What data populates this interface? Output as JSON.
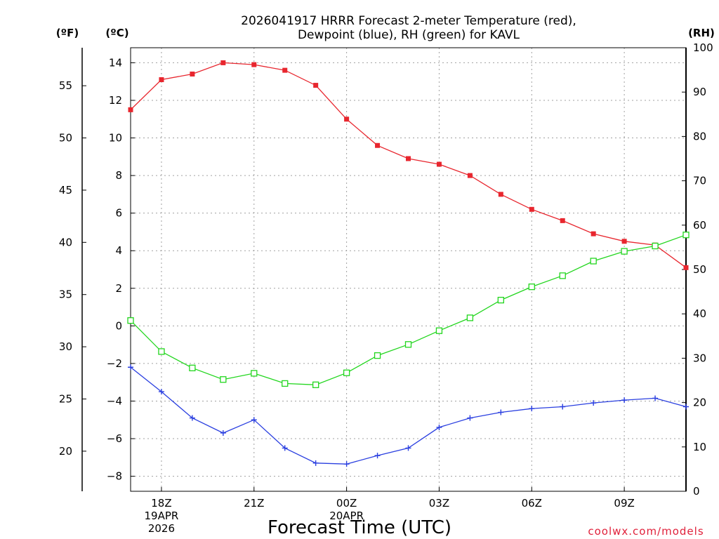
{
  "chart_data": {
    "type": "line",
    "title": [
      "2026041917 HRRR Forecast 2-meter Temperature (red),",
      "Dewpoint (blue), RH (green) for KAVL"
    ],
    "xlabel": "Forecast Time (UTC)",
    "credit": "coolwx.com/models",
    "unit_labels": {
      "fahrenheit": "(ºF)",
      "celsius": "(ºC)",
      "rh": "(RH)"
    },
    "x": [
      17,
      18,
      19,
      20,
      21,
      22,
      23,
      24,
      25,
      26,
      27,
      28,
      29,
      30,
      31,
      32,
      33,
      34,
      35
    ],
    "x_ticks": [
      {
        "x": 18,
        "lines": [
          "18Z",
          "19APR",
          "2026"
        ]
      },
      {
        "x": 21,
        "lines": [
          "21Z"
        ]
      },
      {
        "x": 24,
        "lines": [
          "00Z",
          "20APR"
        ]
      },
      {
        "x": 27,
        "lines": [
          "03Z"
        ]
      },
      {
        "x": 30,
        "lines": [
          "06Z"
        ]
      },
      {
        "x": 33,
        "lines": [
          "09Z"
        ]
      }
    ],
    "xlim": [
      17,
      35
    ],
    "ylim_c": [
      -8.8,
      14.8
    ],
    "ylim_rh": [
      0,
      100
    ],
    "y_ticks_c": [
      -8,
      -6,
      -4,
      -2,
      0,
      2,
      4,
      6,
      8,
      10,
      12,
      14
    ],
    "y_ticks_f": [
      20,
      25,
      30,
      35,
      40,
      45,
      50,
      55
    ],
    "y_ticks_rh": [
      0,
      10,
      20,
      30,
      40,
      50,
      60,
      70,
      80,
      90,
      100
    ],
    "grid": true,
    "series": [
      {
        "name": "Temperature",
        "axis": "celsius",
        "color": "#e8262e",
        "marker": "filled-square",
        "values": [
          11.5,
          13.1,
          13.4,
          14.0,
          13.9,
          13.6,
          12.8,
          11.0,
          9.6,
          8.9,
          8.6,
          8.0,
          7.0,
          6.2,
          5.6,
          4.9,
          4.5,
          4.3,
          3.1
        ]
      },
      {
        "name": "Dewpoint",
        "axis": "celsius",
        "color": "#2a3fe0",
        "marker": "plus",
        "values": [
          -2.2,
          -3.5,
          -4.9,
          -5.7,
          -5.0,
          -6.5,
          -7.3,
          -7.35,
          -6.9,
          -6.5,
          -5.4,
          -4.9,
          -4.6,
          -4.4,
          -4.3,
          -4.1,
          -3.95,
          -3.85,
          -4.3
        ]
      },
      {
        "name": "RH",
        "axis": "rh",
        "color": "#22d61e",
        "marker": "open-square",
        "values": [
          38.5,
          31.5,
          27.8,
          25.2,
          26.6,
          24.3,
          24.0,
          26.7,
          30.6,
          33.1,
          36.2,
          39.1,
          43.1,
          46.1,
          48.6,
          51.9,
          54.1,
          55.3,
          57.8
        ]
      }
    ]
  }
}
